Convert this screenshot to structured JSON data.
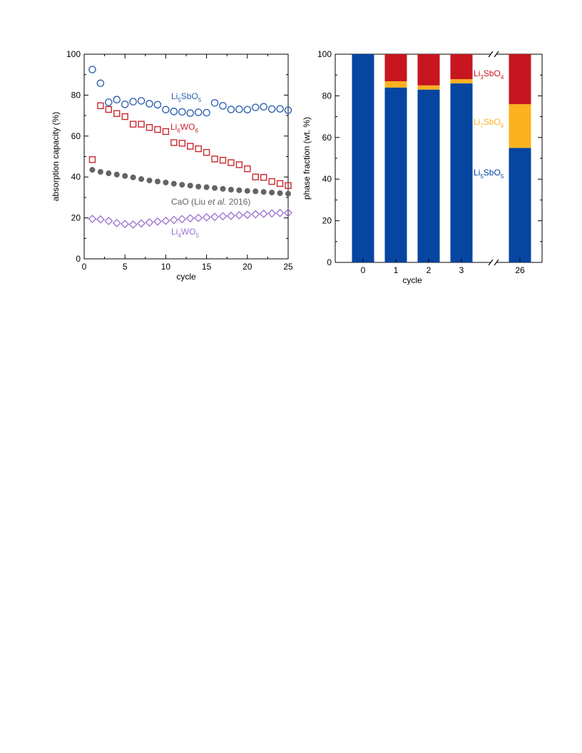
{
  "chart_data": [
    {
      "type": "scatter",
      "xlabel": "cycle",
      "ylabel": "absorption capacity (%)",
      "xlim": [
        0,
        25
      ],
      "ylim": [
        0,
        100
      ],
      "xticks": [
        "0",
        "5",
        "10",
        "15",
        "20",
        "25"
      ],
      "yticks": [
        "0",
        "20",
        "40",
        "60",
        "80",
        "100"
      ],
      "grid": false,
      "series": [
        {
          "name": "Li5SbO5",
          "label": {
            "pre": "Li",
            "s1": "5",
            "mid": "SbO",
            "s2": "5",
            "post": ""
          },
          "marker": "open-circle",
          "color": "#2f62b0",
          "x": [
            1,
            2,
            3,
            4,
            5,
            6,
            7,
            8,
            9,
            10,
            11,
            12,
            13,
            14,
            15,
            16,
            17,
            18,
            19,
            20,
            21,
            22,
            23,
            24,
            25
          ],
          "y": [
            92.5,
            85.8,
            76.5,
            77.8,
            75.5,
            76.8,
            77.2,
            75.8,
            75.3,
            72.9,
            72.0,
            71.8,
            71.2,
            71.6,
            71.4,
            76.2,
            74.8,
            73.0,
            73.1,
            72.9,
            74.0,
            74.3,
            73.2,
            73.3,
            72.6
          ]
        },
        {
          "name": "Li6WO6",
          "label": {
            "pre": "Li",
            "s1": "6",
            "mid": "WO",
            "s2": "6",
            "post": ""
          },
          "marker": "open-square",
          "color": "#c8262e",
          "x": [
            1,
            2,
            3,
            4,
            5,
            6,
            7,
            8,
            9,
            10,
            11,
            12,
            13,
            14,
            15,
            16,
            17,
            18,
            19,
            20,
            21,
            22,
            23,
            24,
            25
          ],
          "y": [
            48.5,
            74.8,
            73.0,
            71.0,
            69.5,
            65.8,
            65.8,
            64.2,
            63.2,
            62.2,
            56.8,
            56.5,
            55.0,
            53.8,
            52.0,
            48.8,
            48.2,
            47.0,
            46.0,
            44.0,
            40.0,
            39.8,
            37.8,
            36.8,
            35.8
          ]
        },
        {
          "name": "CaO",
          "label": {
            "pre": "CaO (Liu ",
            "s1": "",
            "mid": "",
            "s2": "",
            "post": "",
            "italic": "et al.",
            "tail": " 2016)"
          },
          "marker": "filled-circle",
          "color": "#646464",
          "x": [
            1,
            2,
            3,
            4,
            5,
            6,
            7,
            8,
            9,
            10,
            11,
            12,
            13,
            14,
            15,
            16,
            17,
            18,
            19,
            20,
            21,
            22,
            23,
            24,
            25
          ],
          "y": [
            43.5,
            42.5,
            41.8,
            41.2,
            40.5,
            39.8,
            39.0,
            38.3,
            37.8,
            37.3,
            36.7,
            36.2,
            35.8,
            35.3,
            35.0,
            34.6,
            34.2,
            33.8,
            33.5,
            33.2,
            33.0,
            32.7,
            32.4,
            32.1,
            31.8
          ]
        },
        {
          "name": "Li4WO5",
          "label": {
            "pre": "Li",
            "s1": "4",
            "mid": "WO",
            "s2": "5",
            "post": ""
          },
          "marker": "open-diamond",
          "color": "#9a6fd0",
          "x": [
            1,
            2,
            3,
            4,
            5,
            6,
            7,
            8,
            9,
            10,
            11,
            12,
            13,
            14,
            15,
            16,
            17,
            18,
            19,
            20,
            21,
            22,
            23,
            24,
            25
          ],
          "y": [
            19.5,
            19.3,
            18.5,
            17.5,
            17.0,
            16.8,
            17.3,
            17.8,
            18.2,
            18.6,
            19.0,
            19.4,
            19.8,
            20.0,
            20.3,
            20.5,
            20.8,
            21.0,
            21.3,
            21.5,
            21.8,
            22.0,
            22.2,
            22.4,
            22.5
          ]
        }
      ]
    },
    {
      "type": "bar",
      "stacked": true,
      "xlabel": "cycle",
      "ylabel": "phase fraction (wt. %)",
      "ylim": [
        0,
        100
      ],
      "yticks": [
        "0",
        "20",
        "40",
        "60",
        "80",
        "100"
      ],
      "categories": [
        "0",
        "1",
        "2",
        "3",
        "26"
      ],
      "axis_break": "between 3 and 26",
      "series": [
        {
          "name": "Li5SbO5",
          "label": {
            "pre": "Li",
            "s1": "5",
            "mid": "SbO",
            "s2": "5"
          },
          "color": "#0645a0",
          "values": [
            100,
            84,
            83,
            86,
            55
          ]
        },
        {
          "name": "Li7SbO6",
          "label": {
            "pre": "Li",
            "s1": "7",
            "mid": "SbO",
            "s2": "6"
          },
          "color": "#fbb21f",
          "values": [
            0,
            3,
            2,
            2,
            21
          ]
        },
        {
          "name": "Li3SbO4",
          "label": {
            "pre": "Li",
            "s1": "3",
            "mid": "SbO",
            "s2": "4"
          },
          "color": "#c7161f",
          "values": [
            0,
            13,
            15,
            12,
            24
          ]
        }
      ]
    }
  ]
}
